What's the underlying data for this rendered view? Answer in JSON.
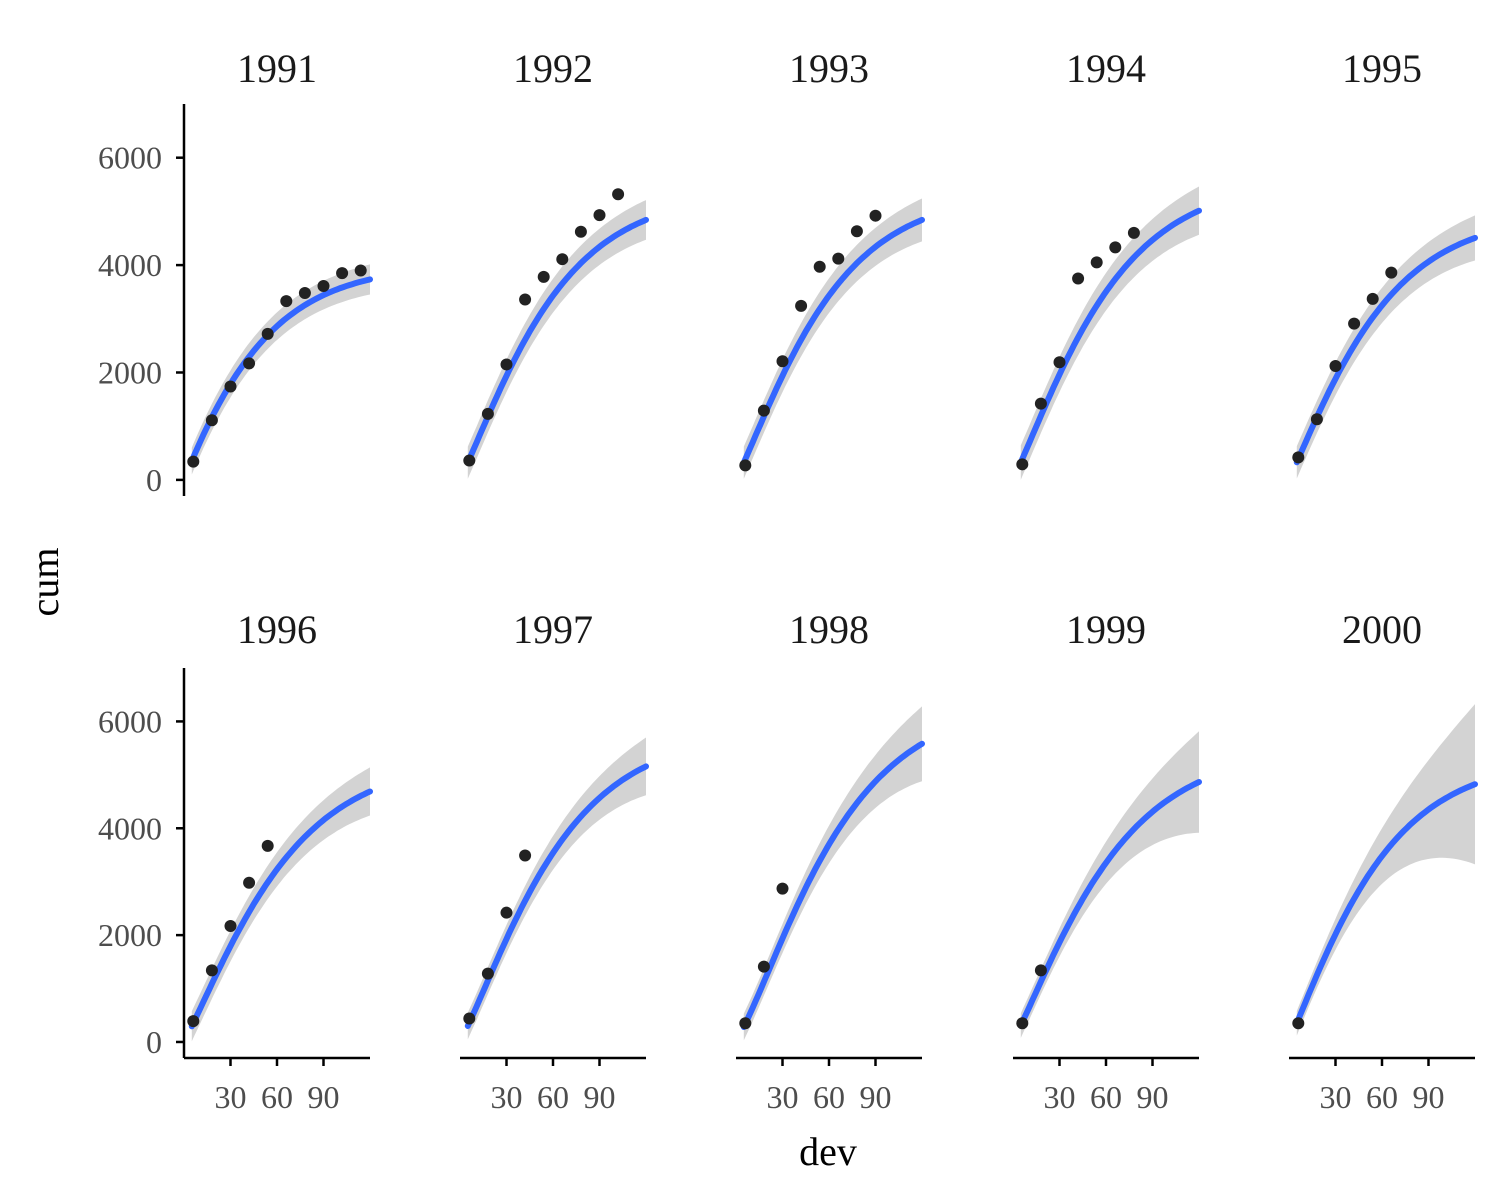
{
  "chart_data": {
    "type": "scatter",
    "xlabel": "dev",
    "ylabel": "cum",
    "xticks": [
      30,
      60,
      90
    ],
    "yticks": [
      0,
      2000,
      4000,
      6000
    ],
    "xlim": [
      0,
      120
    ],
    "ylim": [
      -300,
      7000
    ],
    "colors": {
      "points": "#222222",
      "fit": "#3366ff",
      "ribbon": "#d3d3d3",
      "axis": "#000000"
    },
    "panels": [
      {
        "title": "1991",
        "points": {
          "x": [
            6,
            18,
            30,
            42,
            54,
            66,
            78,
            90,
            102,
            114
          ],
          "y": [
            340,
            1110,
            1740,
            2170,
            2720,
            3330,
            3480,
            3610,
            3850,
            3900
          ]
        },
        "fit": {
          "asymptote": 4000,
          "rate": 0.03,
          "lag": 0.4
        },
        "band": [
          250,
          280
        ]
      },
      {
        "title": "1992",
        "points": {
          "x": [
            6,
            18,
            30,
            42,
            54,
            66,
            78,
            90,
            102
          ],
          "y": [
            360,
            1230,
            2150,
            3360,
            3780,
            4110,
            4620,
            4930,
            5320
          ]
        },
        "fit": {
          "asymptote": 5350,
          "rate": 0.029,
          "lag": 0.6
        },
        "band": [
          300,
          370
        ]
      },
      {
        "title": "1993",
        "points": {
          "x": [
            6,
            18,
            30,
            42,
            54,
            66,
            78,
            90
          ],
          "y": [
            270,
            1290,
            2210,
            3240,
            3970,
            4120,
            4630,
            4920
          ]
        },
        "fit": {
          "asymptote": 5350,
          "rate": 0.029,
          "lag": 0.6
        },
        "band": [
          300,
          400
        ]
      },
      {
        "title": "1994",
        "points": {
          "x": [
            6,
            18,
            30,
            42,
            54,
            66,
            78
          ],
          "y": [
            290,
            1420,
            2190,
            3750,
            4050,
            4330,
            4600
          ]
        },
        "fit": {
          "asymptote": 5600,
          "rate": 0.028,
          "lag": 0.6
        },
        "band": [
          320,
          450
        ]
      },
      {
        "title": "1995",
        "points": {
          "x": [
            6,
            18,
            30,
            42,
            54,
            66
          ],
          "y": [
            420,
            1130,
            2120,
            2910,
            3370,
            3860
          ]
        },
        "fit": {
          "asymptote": 4950,
          "rate": 0.029,
          "lag": 0.55
        },
        "band": [
          300,
          420
        ]
      },
      {
        "title": "1996",
        "points": {
          "x": [
            6,
            18,
            30,
            42,
            54
          ],
          "y": [
            390,
            1340,
            2170,
            2980,
            3670
          ]
        },
        "fit": {
          "asymptote": 5300,
          "rate": 0.027,
          "lag": 0.6
        },
        "band": [
          280,
          450
        ]
      },
      {
        "title": "1997",
        "points": {
          "x": [
            6,
            18,
            30,
            42
          ],
          "y": [
            440,
            1280,
            2420,
            3490
          ]
        },
        "fit": {
          "asymptote": 5800,
          "rate": 0.028,
          "lag": 0.65
        },
        "band": [
          250,
          540
        ]
      },
      {
        "title": "1998",
        "points": {
          "x": [
            6,
            18,
            30
          ],
          "y": [
            350,
            1410,
            2870
          ]
        },
        "fit": {
          "asymptote": 6400,
          "rate": 0.027,
          "lag": 0.7
        },
        "band": [
          250,
          700
        ]
      },
      {
        "title": "1999",
        "points": {
          "x": [
            6,
            18
          ],
          "y": [
            350,
            1340
          ]
        },
        "fit": {
          "asymptote": 5500,
          "rate": 0.027,
          "lag": 0.6
        },
        "band": [
          230,
          950
        ]
      },
      {
        "title": "2000",
        "points": {
          "x": [
            6
          ],
          "y": [
            350
          ]
        },
        "fit": {
          "asymptote": 5300,
          "rate": 0.029,
          "lag": 0.55
        },
        "band": [
          230,
          1500
        ]
      }
    ]
  }
}
